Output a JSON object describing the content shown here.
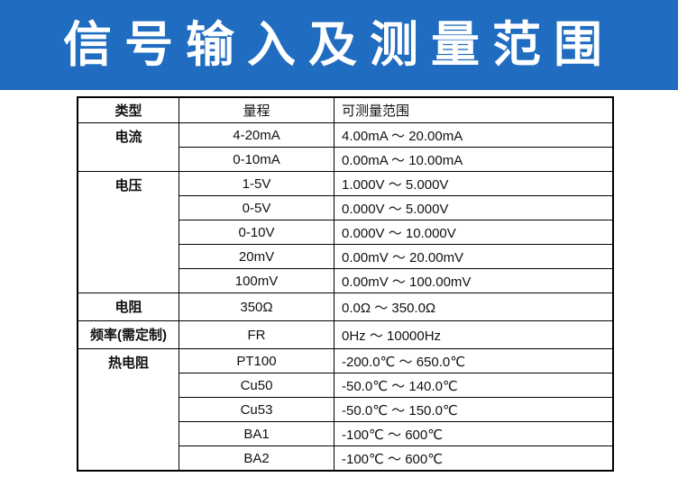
{
  "header": {
    "title": "信号输入及测量范围"
  },
  "table": {
    "columns": [
      "类型",
      "量程",
      "可测量范围"
    ],
    "groups": [
      {
        "type": "电流",
        "rows": [
          [
            "4-20mA",
            "4.00mA ～ 20.00mA"
          ],
          [
            "0-10mA",
            "0.00mA ～ 10.00mA"
          ]
        ]
      },
      {
        "type": "电压",
        "rows": [
          [
            "1-5V",
            "1.000V ～ 5.000V"
          ],
          [
            "0-5V",
            "0.000V ～ 5.000V"
          ],
          [
            "0-10V",
            "0.000V ～ 10.000V"
          ],
          [
            "20mV",
            "0.00mV ～ 20.00mV"
          ],
          [
            "100mV",
            "0.00mV ～ 100.00mV"
          ]
        ]
      },
      {
        "type": "电阻",
        "rows": [
          [
            "350Ω",
            "0.0Ω ～ 350.0Ω"
          ]
        ]
      },
      {
        "type": "频率(需定制)",
        "rows": [
          [
            "FR",
            "0Hz ～ 10000Hz"
          ]
        ]
      },
      {
        "type": "热电阻",
        "rows": [
          [
            "PT100",
            "-200.0℃ ～ 650.0℃"
          ],
          [
            "Cu50",
            "-50.0℃ ～ 140.0℃"
          ],
          [
            "Cu53",
            "-50.0℃ ～ 150.0℃"
          ],
          [
            "BA1",
            "-100℃ ～ 600℃"
          ],
          [
            "BA2",
            "-100℃ ～ 600℃"
          ]
        ]
      }
    ]
  }
}
